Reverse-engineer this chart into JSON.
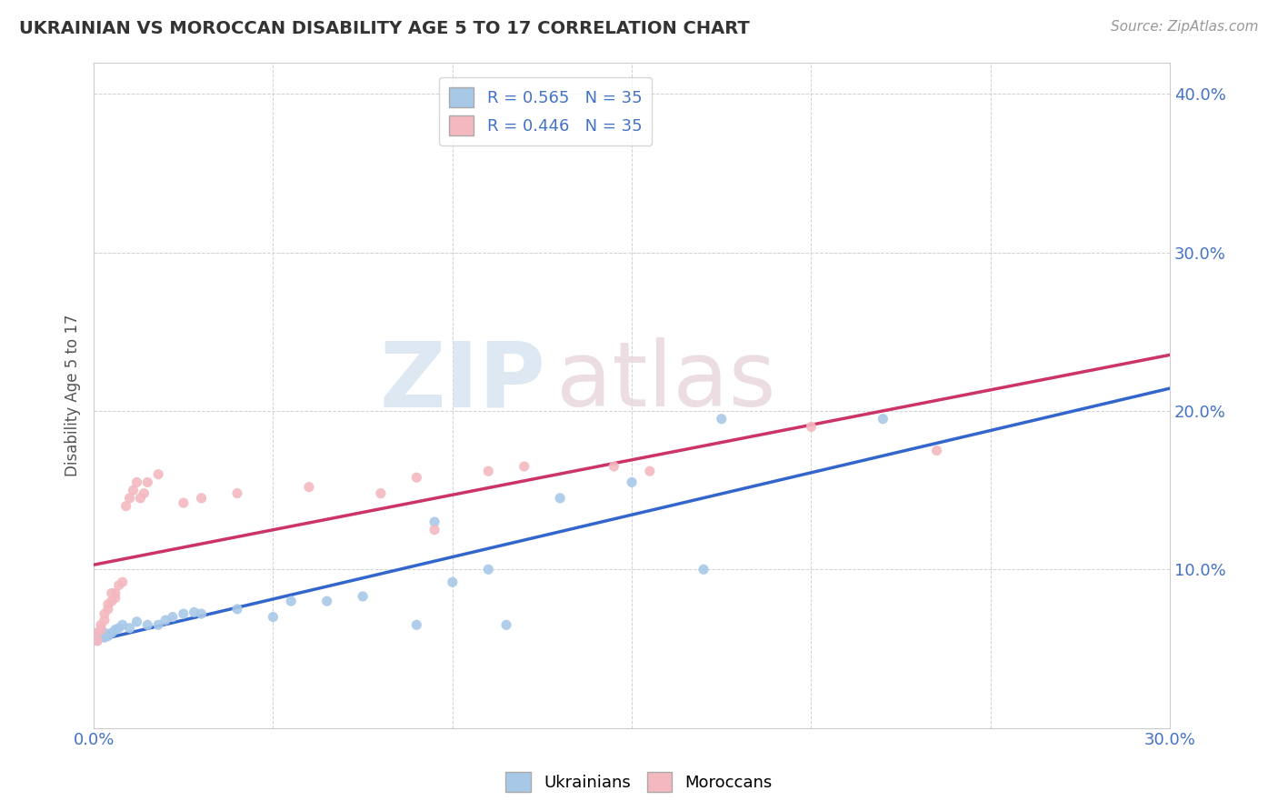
{
  "title": "UKRAINIAN VS MOROCCAN DISABILITY AGE 5 TO 17 CORRELATION CHART",
  "source_text": "Source: ZipAtlas.com",
  "ylabel": "Disability Age 5 to 17",
  "xlim": [
    0.0,
    0.3
  ],
  "ylim": [
    0.0,
    0.42
  ],
  "xticks": [
    0.0,
    0.05,
    0.1,
    0.15,
    0.2,
    0.25,
    0.3
  ],
  "yticks": [
    0.0,
    0.1,
    0.2,
    0.3,
    0.4
  ],
  "watermark_zip": "ZIP",
  "watermark_atlas": "atlas",
  "ukrainian_color": "#a8c8e8",
  "moroccan_color": "#f4b8c0",
  "trend_ukrainian_color": "#3366cc",
  "trend_moroccan_color": "#cc3366",
  "ukrainian_points": [
    [
      0.001,
      0.055
    ],
    [
      0.001,
      0.06
    ],
    [
      0.002,
      0.058
    ],
    [
      0.002,
      0.062
    ],
    [
      0.003,
      0.057
    ],
    [
      0.003,
      0.06
    ],
    [
      0.004,
      0.058
    ],
    [
      0.005,
      0.06
    ],
    [
      0.006,
      0.062
    ],
    [
      0.007,
      0.063
    ],
    [
      0.008,
      0.065
    ],
    [
      0.01,
      0.063
    ],
    [
      0.012,
      0.067
    ],
    [
      0.015,
      0.065
    ],
    [
      0.018,
      0.065
    ],
    [
      0.02,
      0.068
    ],
    [
      0.022,
      0.07
    ],
    [
      0.025,
      0.072
    ],
    [
      0.028,
      0.073
    ],
    [
      0.03,
      0.072
    ],
    [
      0.04,
      0.075
    ],
    [
      0.05,
      0.07
    ],
    [
      0.055,
      0.08
    ],
    [
      0.065,
      0.08
    ],
    [
      0.075,
      0.083
    ],
    [
      0.09,
      0.065
    ],
    [
      0.095,
      0.13
    ],
    [
      0.1,
      0.092
    ],
    [
      0.11,
      0.1
    ],
    [
      0.115,
      0.065
    ],
    [
      0.13,
      0.145
    ],
    [
      0.15,
      0.155
    ],
    [
      0.17,
      0.1
    ],
    [
      0.175,
      0.195
    ],
    [
      0.22,
      0.195
    ]
  ],
  "moroccan_points": [
    [
      0.001,
      0.055
    ],
    [
      0.001,
      0.06
    ],
    [
      0.002,
      0.062
    ],
    [
      0.002,
      0.065
    ],
    [
      0.003,
      0.068
    ],
    [
      0.003,
      0.072
    ],
    [
      0.004,
      0.075
    ],
    [
      0.004,
      0.078
    ],
    [
      0.005,
      0.08
    ],
    [
      0.005,
      0.085
    ],
    [
      0.006,
      0.082
    ],
    [
      0.006,
      0.085
    ],
    [
      0.007,
      0.09
    ],
    [
      0.008,
      0.092
    ],
    [
      0.009,
      0.14
    ],
    [
      0.01,
      0.145
    ],
    [
      0.011,
      0.15
    ],
    [
      0.012,
      0.155
    ],
    [
      0.013,
      0.145
    ],
    [
      0.014,
      0.148
    ],
    [
      0.015,
      0.155
    ],
    [
      0.018,
      0.16
    ],
    [
      0.025,
      0.142
    ],
    [
      0.03,
      0.145
    ],
    [
      0.04,
      0.148
    ],
    [
      0.06,
      0.152
    ],
    [
      0.08,
      0.148
    ],
    [
      0.09,
      0.158
    ],
    [
      0.095,
      0.125
    ],
    [
      0.11,
      0.162
    ],
    [
      0.12,
      0.165
    ],
    [
      0.145,
      0.165
    ],
    [
      0.155,
      0.162
    ],
    [
      0.2,
      0.19
    ],
    [
      0.235,
      0.175
    ]
  ],
  "trend_ukr_start": 0.05,
  "trend_ukr_end": 0.2,
  "trend_mor_start": 0.085,
  "trend_mor_end": 0.185,
  "background_color": "#ffffff",
  "grid_color": "#cccccc",
  "title_color": "#333333",
  "tick_color": "#4472c4",
  "axis_color": "#cccccc"
}
